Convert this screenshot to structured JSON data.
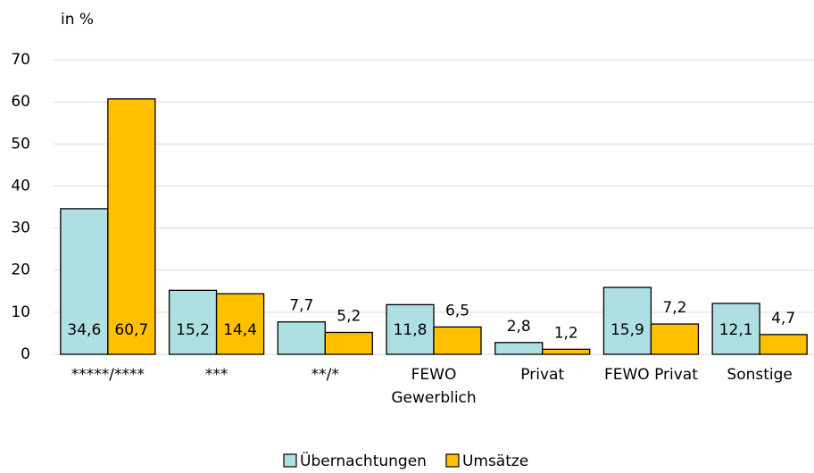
{
  "chart_data": {
    "type": "bar",
    "title": "in %",
    "categories": [
      "*****/****",
      "***",
      "**/*",
      "FEWO Gewerblich",
      "Privat",
      "FEWO Privat",
      "Sonstige"
    ],
    "series": [
      {
        "name": "Übernachtungen",
        "color": "#aedfe2",
        "values": [
          34.6,
          15.2,
          7.7,
          11.8,
          2.8,
          15.9,
          12.1
        ],
        "value_labels": [
          "34,6",
          "15,2",
          "7,7",
          "11,8",
          "2,8",
          "15,9",
          "12,1"
        ]
      },
      {
        "name": "Umsätze",
        "color": "#ffc000",
        "values": [
          60.7,
          14.4,
          5.2,
          6.5,
          1.2,
          7.2,
          4.7
        ],
        "value_labels": [
          "60,7",
          "14,4",
          "5,2",
          "6,5",
          "1,2",
          "7,2",
          "4,7"
        ]
      }
    ],
    "ylim": [
      0,
      70
    ],
    "yticks": [
      0,
      10,
      20,
      30,
      40,
      50,
      60,
      70
    ],
    "grid": true,
    "legend": "bottom"
  }
}
